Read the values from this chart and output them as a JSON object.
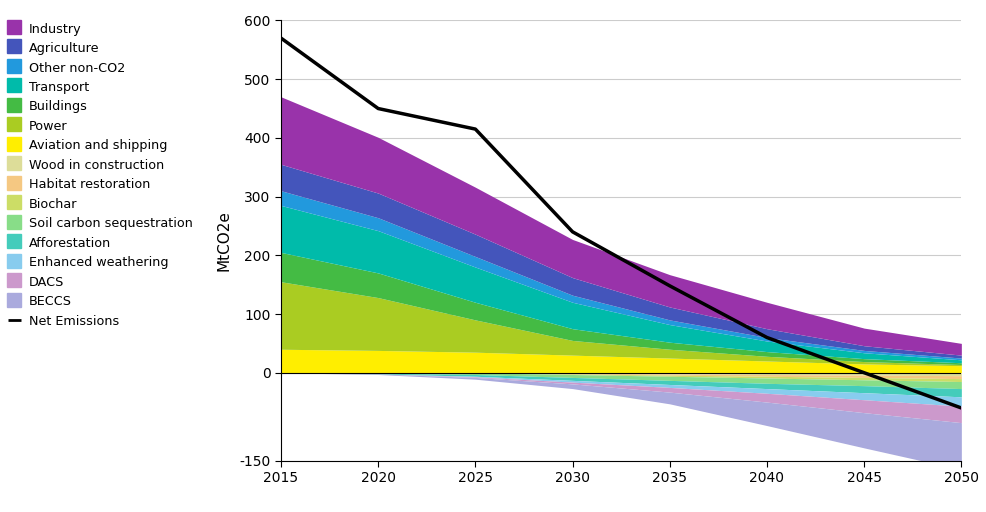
{
  "years": [
    2015,
    2020,
    2025,
    2030,
    2035,
    2040,
    2045,
    2050
  ],
  "series_order_pos": [
    "Aviation and shipping",
    "Power",
    "Buildings",
    "Transport",
    "Other non-CO2",
    "Agriculture",
    "Industry"
  ],
  "series_order_neg": [
    "Wood in construction",
    "Habitat restoration",
    "Biochar",
    "Soil carbon sequestration",
    "Afforestation",
    "Enhanced weathering",
    "DACS",
    "BECCS"
  ],
  "series": {
    "Industry": {
      "color": "#9933AA",
      "values": [
        115,
        95,
        80,
        65,
        55,
        45,
        30,
        20
      ]
    },
    "Agriculture": {
      "color": "#4455BB",
      "values": [
        45,
        42,
        38,
        30,
        22,
        15,
        8,
        5
      ]
    },
    "Other non-CO2": {
      "color": "#2299DD",
      "values": [
        25,
        22,
        18,
        12,
        8,
        6,
        4,
        3
      ]
    },
    "Transport": {
      "color": "#00BBAA",
      "values": [
        80,
        72,
        60,
        45,
        30,
        18,
        10,
        5
      ]
    },
    "Buildings": {
      "color": "#44BB44",
      "values": [
        50,
        42,
        30,
        20,
        12,
        8,
        5,
        3
      ]
    },
    "Power": {
      "color": "#AACC22",
      "values": [
        115,
        90,
        55,
        25,
        15,
        8,
        4,
        2
      ]
    },
    "Aviation and shipping": {
      "color": "#FFEE00",
      "values": [
        40,
        38,
        35,
        30,
        25,
        20,
        15,
        12
      ]
    },
    "Wood in construction": {
      "color": "#DDDD99",
      "values": [
        0,
        0,
        0,
        -1,
        -2,
        -3,
        -4,
        -5
      ]
    },
    "Habitat restoration": {
      "color": "#F5C882",
      "values": [
        0,
        0,
        0,
        -1,
        -2,
        -3,
        -4,
        -5
      ]
    },
    "Biochar": {
      "color": "#CCDD66",
      "values": [
        0,
        0,
        0,
        -1,
        -2,
        -3,
        -4,
        -5
      ]
    },
    "Soil carbon sequestration": {
      "color": "#88DD88",
      "values": [
        0,
        -1,
        -3,
        -5,
        -7,
        -9,
        -10,
        -12
      ]
    },
    "Afforestation": {
      "color": "#44CCBB",
      "values": [
        0,
        -1,
        -3,
        -5,
        -7,
        -9,
        -12,
        -14
      ]
    },
    "Enhanced weathering": {
      "color": "#88CCEE",
      "values": [
        0,
        0,
        -1,
        -3,
        -5,
        -8,
        -12,
        -16
      ]
    },
    "DACS": {
      "color": "#CC99CC",
      "values": [
        0,
        0,
        -1,
        -3,
        -8,
        -15,
        -22,
        -28
      ]
    },
    "BECCS": {
      "color": "#AAAADD",
      "values": [
        0,
        -1,
        -3,
        -8,
        -20,
        -40,
        -60,
        -80
      ]
    }
  },
  "net_emissions": {
    "color": "#000000",
    "values": [
      570,
      450,
      415,
      240,
      148,
      60,
      0,
      -60
    ]
  },
  "ylabel": "MtCO2e",
  "ylim": [
    -150,
    600
  ],
  "xticks": [
    2015,
    2020,
    2025,
    2030,
    2035,
    2040,
    2045,
    2050
  ],
  "yticks": [
    -150,
    0,
    100,
    200,
    300,
    400,
    500,
    600
  ],
  "bg_color": "#FFFFFF",
  "grid_color": "#CCCCCC",
  "legend_order": [
    "Industry",
    "Agriculture",
    "Other non-CO2",
    "Transport",
    "Buildings",
    "Power",
    "Aviation and shipping",
    "Wood in construction",
    "Habitat restoration",
    "Biochar",
    "Soil carbon sequestration",
    "Afforestation",
    "Enhanced weathering",
    "DACS",
    "BECCS"
  ]
}
